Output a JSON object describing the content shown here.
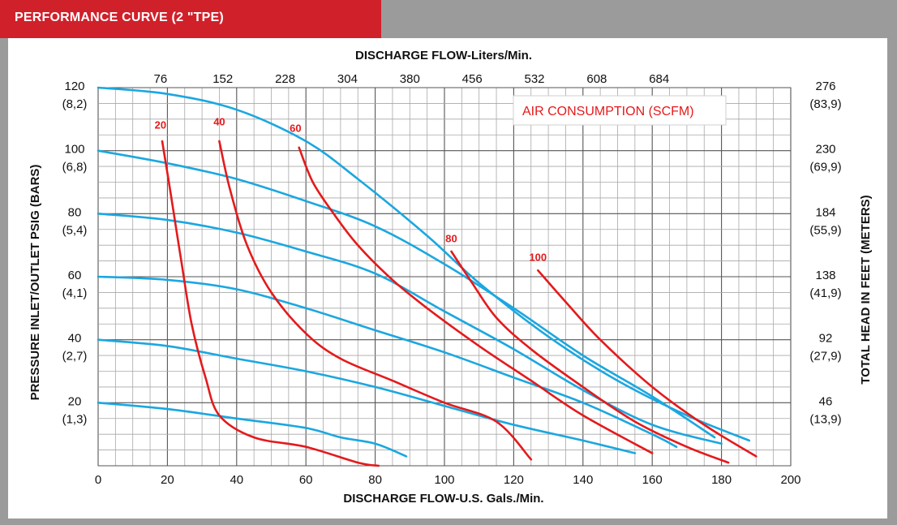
{
  "header": {
    "title": "PERFORMANCE CURVE (2 \"TPE)"
  },
  "chart_data": {
    "type": "line",
    "title": "",
    "xlabel": "DISCHARGE FLOW-U.S. Gals./Min.",
    "x2label": "DISCHARGE FLOW-Liters/Min.",
    "ylabel": "PRESSURE INLET/OUTLET PSIG (BARS)",
    "y2label": "TOTAL HEAD IN FEET (METERS)",
    "xlim": [
      0,
      200
    ],
    "ylim": [
      0,
      120
    ],
    "grid": true,
    "x_ticks": [
      "0",
      "20",
      "40",
      "60",
      "80",
      "100",
      "120",
      "140",
      "160",
      "180",
      "200"
    ],
    "x2_ticks": [
      {
        "gpm": 18,
        "label": "76"
      },
      {
        "gpm": 36,
        "label": "152"
      },
      {
        "gpm": 54,
        "label": "228"
      },
      {
        "gpm": 72,
        "label": "304"
      },
      {
        "gpm": 90,
        "label": "380"
      },
      {
        "gpm": 108,
        "label": "456"
      },
      {
        "gpm": 126,
        "label": "532"
      },
      {
        "gpm": 144,
        "label": "608"
      },
      {
        "gpm": 162,
        "label": "684"
      }
    ],
    "y_ticks": [
      {
        "psi": 120,
        "label": "120",
        "sub": "(8,2)"
      },
      {
        "psi": 100,
        "label": "100",
        "sub": "(6,8)"
      },
      {
        "psi": 80,
        "label": "80",
        "sub": "(5,4)"
      },
      {
        "psi": 60,
        "label": "60",
        "sub": "(4,1)"
      },
      {
        "psi": 40,
        "label": "40",
        "sub": "(2,7)"
      },
      {
        "psi": 20,
        "label": "20",
        "sub": "(1,3)"
      }
    ],
    "y2_ticks": [
      {
        "psi": 120,
        "label": "276",
        "sub": "(83,9)"
      },
      {
        "psi": 100,
        "label": "230",
        "sub": "(69,9)"
      },
      {
        "psi": 80,
        "label": "184",
        "sub": "(55,9)"
      },
      {
        "psi": 60,
        "label": "138",
        "sub": "(41,9)"
      },
      {
        "psi": 40,
        "label": "92",
        "sub": "(27,9)"
      },
      {
        "psi": 20,
        "label": "46",
        "sub": "(13,9)"
      }
    ],
    "legend_label": "AIR CONSUMPTION (SCFM)",
    "colors": {
      "pressure": "#1ba7e0",
      "air": "#e41a1c",
      "grid": "#8a8a8a",
      "header": "#d0202a"
    },
    "pressure_series": [
      {
        "points": [
          [
            0,
            120
          ],
          [
            20,
            118
          ],
          [
            40,
            113
          ],
          [
            60,
            103
          ],
          [
            75,
            91
          ],
          [
            95,
            73
          ],
          [
            110,
            58
          ],
          [
            130,
            41
          ],
          [
            150,
            27
          ],
          [
            170,
            16
          ],
          [
            188,
            8
          ]
        ]
      },
      {
        "points": [
          [
            0,
            100
          ],
          [
            20,
            96
          ],
          [
            40,
            91
          ],
          [
            60,
            84
          ],
          [
            80,
            76
          ],
          [
            100,
            64
          ],
          [
            120,
            50
          ],
          [
            140,
            35
          ],
          [
            160,
            22
          ],
          [
            178,
            9
          ]
        ]
      },
      {
        "points": [
          [
            0,
            80
          ],
          [
            20,
            78
          ],
          [
            40,
            74
          ],
          [
            60,
            68
          ],
          [
            80,
            61
          ],
          [
            100,
            49
          ],
          [
            120,
            37
          ],
          [
            140,
            24
          ],
          [
            160,
            13
          ],
          [
            180,
            7
          ]
        ]
      },
      {
        "points": [
          [
            0,
            60
          ],
          [
            20,
            59
          ],
          [
            40,
            56
          ],
          [
            60,
            50
          ],
          [
            80,
            43
          ],
          [
            100,
            36
          ],
          [
            120,
            28
          ],
          [
            140,
            20
          ],
          [
            160,
            10
          ],
          [
            167,
            6
          ]
        ]
      },
      {
        "points": [
          [
            0,
            40
          ],
          [
            20,
            38
          ],
          [
            40,
            34
          ],
          [
            60,
            30
          ],
          [
            80,
            25
          ],
          [
            100,
            19
          ],
          [
            120,
            13
          ],
          [
            140,
            8
          ],
          [
            155,
            4
          ]
        ]
      },
      {
        "points": [
          [
            0,
            20
          ],
          [
            20,
            18
          ],
          [
            40,
            15
          ],
          [
            60,
            12
          ],
          [
            70,
            9
          ],
          [
            80,
            7
          ],
          [
            89,
            3
          ]
        ]
      }
    ],
    "air_series": [
      {
        "name": "20",
        "label_at": [
          18,
          107
        ],
        "points": [
          [
            18.5,
            103
          ],
          [
            21,
            86
          ],
          [
            24,
            65
          ],
          [
            27,
            45
          ],
          [
            31,
            28
          ],
          [
            35,
            16
          ],
          [
            45,
            9
          ],
          [
            60,
            6
          ],
          [
            75,
            1
          ],
          [
            81,
            0
          ]
        ]
      },
      {
        "name": "40",
        "label_at": [
          35,
          108
        ],
        "points": [
          [
            35,
            103
          ],
          [
            38,
            88
          ],
          [
            43,
            70
          ],
          [
            50,
            55
          ],
          [
            60,
            42
          ],
          [
            70,
            34
          ],
          [
            85,
            27
          ],
          [
            100,
            20
          ],
          [
            115,
            14
          ],
          [
            125,
            2
          ]
        ]
      },
      {
        "name": "60",
        "label_at": [
          57,
          106
        ],
        "points": [
          [
            58,
            101
          ],
          [
            62,
            90
          ],
          [
            68,
            80
          ],
          [
            75,
            70
          ],
          [
            85,
            59
          ],
          [
            95,
            50
          ],
          [
            110,
            38
          ],
          [
            125,
            27
          ],
          [
            140,
            16
          ],
          [
            160,
            4
          ]
        ]
      },
      {
        "name": "80",
        "label_at": [
          102,
          71
        ],
        "points": [
          [
            102,
            68
          ],
          [
            108,
            58
          ],
          [
            115,
            47
          ],
          [
            125,
            37
          ],
          [
            140,
            25
          ],
          [
            155,
            14
          ],
          [
            170,
            6
          ],
          [
            182,
            1
          ]
        ]
      },
      {
        "name": "100",
        "label_at": [
          127,
          65
        ],
        "points": [
          [
            127,
            62
          ],
          [
            135,
            52
          ],
          [
            145,
            40
          ],
          [
            160,
            25
          ],
          [
            175,
            13
          ],
          [
            190,
            3
          ]
        ]
      }
    ]
  }
}
